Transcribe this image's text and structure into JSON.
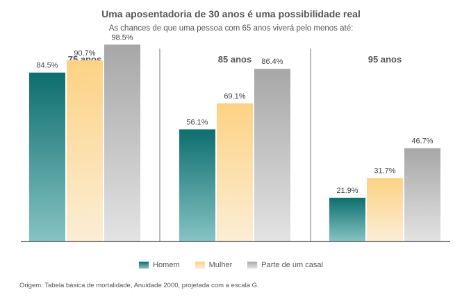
{
  "title": "Uma aposentadoria de 30 anos é uma possibilidade real",
  "subtitle": "As chances de que uma pessoa com 65 anos viverá pelo menos até:",
  "source": "Origem: Tabela básica de mortalidade, Anuidade 2000, projetada com a escala G.",
  "chart_data": {
    "type": "bar",
    "categories": [
      "75 anos",
      "85 anos",
      "95 anos"
    ],
    "series": [
      {
        "name": "Homem",
        "values": [
          84.5,
          56.1,
          21.9
        ],
        "labels": [
          "84.5%",
          "56.1%",
          "21.9%"
        ],
        "color_top": "#0e6e6e",
        "color_bottom": "#86c3c4"
      },
      {
        "name": "Mulher",
        "values": [
          90.7,
          69.1,
          31.7
        ],
        "labels": [
          "90.7%",
          "69.1%",
          "31.7%"
        ],
        "color_top": "#fdd283",
        "color_bottom": "#fbeed6"
      },
      {
        "name": "Parte de um casal",
        "values": [
          98.5,
          86.4,
          46.7
        ],
        "labels": [
          "98.5%",
          "86.4%",
          "46.7%"
        ],
        "color_top": "#a7a7a7",
        "color_bottom": "#e3e3e3"
      }
    ],
    "ylim": [
      0,
      100
    ],
    "grid": false,
    "legend": "bottom"
  }
}
